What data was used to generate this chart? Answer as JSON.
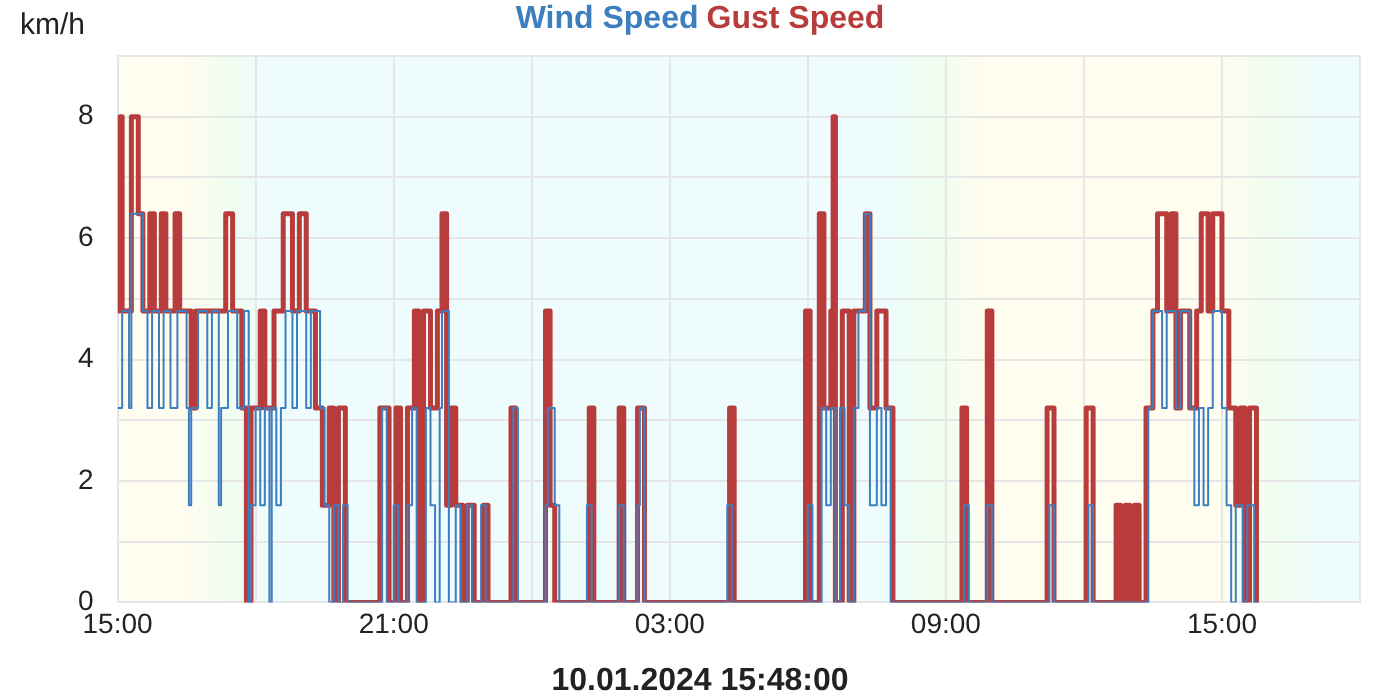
{
  "chart_data": {
    "type": "step",
    "xlabel": "10.01.2024 15:48:00",
    "ylabel": "km/h",
    "legend": "top",
    "grid": true,
    "marker": "none",
    "line_style": "solid",
    "xlim": [
      "2024-01-09T15:00",
      "2024-01-10T18:00"
    ],
    "xticks": [
      {
        "value": "2024-01-09T15:00",
        "label": "15:00"
      },
      {
        "value": "2024-01-09T18:00",
        "label": null
      },
      {
        "value": "2024-01-09T21:00",
        "label": "21:00"
      },
      {
        "value": "2024-01-10T00:00",
        "label": null
      },
      {
        "value": "2024-01-10T03:00",
        "label": "03:00"
      },
      {
        "value": "2024-01-10T06:00",
        "label": null
      },
      {
        "value": "2024-01-10T09:00",
        "label": "09:00"
      },
      {
        "value": "2024-01-10T12:00",
        "label": null
      },
      {
        "value": "2024-01-10T15:00",
        "label": "15:00"
      },
      {
        "value": "2024-01-10T18:00",
        "label": null
      }
    ],
    "ylim": [
      0,
      9
    ],
    "yticks": [
      0,
      {
        "value": 1,
        "label": null
      },
      2,
      {
        "value": 3,
        "label": null
      },
      4,
      {
        "value": 5,
        "label": null
      },
      6,
      {
        "value": 7,
        "label": null
      },
      8,
      {
        "value": 9,
        "label": null
      }
    ],
    "series": [
      {
        "name": "Wind Speed",
        "color": "#3d7ebf",
        "x": [
          "2024-01-09T15:00",
          "2024-01-09T15:06",
          "2024-01-09T15:15",
          "2024-01-09T15:18",
          "2024-01-09T15:33",
          "2024-01-09T15:39",
          "2024-01-09T15:45",
          "2024-01-09T15:54",
          "2024-01-09T16:00",
          "2024-01-09T16:09",
          "2024-01-09T16:18",
          "2024-01-09T16:30",
          "2024-01-09T16:33",
          "2024-01-09T16:36",
          "2024-01-09T16:45",
          "2024-01-09T16:57",
          "2024-01-09T17:03",
          "2024-01-09T17:12",
          "2024-01-09T17:15",
          "2024-01-09T17:24",
          "2024-01-09T17:36",
          "2024-01-09T17:45",
          "2024-01-09T17:51",
          "2024-01-09T17:54",
          "2024-01-09T18:00",
          "2024-01-09T18:06",
          "2024-01-09T18:12",
          "2024-01-09T18:18",
          "2024-01-09T18:21",
          "2024-01-09T18:27",
          "2024-01-09T18:33",
          "2024-01-09T18:39",
          "2024-01-09T18:48",
          "2024-01-09T18:54",
          "2024-01-09T19:06",
          "2024-01-09T19:12",
          "2024-01-09T19:24",
          "2024-01-09T19:30",
          "2024-01-09T19:36",
          "2024-01-09T19:42",
          "2024-01-09T19:48",
          "2024-01-09T19:54",
          "2024-01-09T20:00",
          "2024-01-09T20:45",
          "2024-01-09T20:51",
          "2024-01-09T21:00",
          "2024-01-09T21:06",
          "2024-01-09T21:18",
          "2024-01-09T21:24",
          "2024-01-09T21:30",
          "2024-01-09T21:42",
          "2024-01-09T21:48",
          "2024-01-09T21:54",
          "2024-01-09T22:00",
          "2024-01-09T22:03",
          "2024-01-09T22:12",
          "2024-01-09T22:21",
          "2024-01-09T22:27",
          "2024-01-09T22:36",
          "2024-01-09T22:42",
          "2024-01-09T22:54",
          "2024-01-09T23:00",
          "2024-01-09T23:36",
          "2024-01-09T23:42",
          "2024-01-10T00:18",
          "2024-01-10T00:21",
          "2024-01-10T00:30",
          "2024-01-10T00:36",
          "2024-01-10T01:12",
          "2024-01-10T01:18",
          "2024-01-10T01:54",
          "2024-01-10T02:00",
          "2024-01-10T02:18",
          "2024-01-10T02:21",
          "2024-01-10T02:27",
          "2024-01-10T04:15",
          "2024-01-10T04:21",
          "2024-01-10T06:00",
          "2024-01-10T06:06",
          "2024-01-10T06:18",
          "2024-01-10T06:24",
          "2024-01-10T06:30",
          "2024-01-10T06:36",
          "2024-01-10T06:42",
          "2024-01-10T06:48",
          "2024-01-10T06:54",
          "2024-01-10T07:00",
          "2024-01-10T07:06",
          "2024-01-10T07:15",
          "2024-01-10T07:21",
          "2024-01-10T07:30",
          "2024-01-10T07:36",
          "2024-01-10T07:42",
          "2024-01-10T07:48",
          "2024-01-10T09:24",
          "2024-01-10T09:30",
          "2024-01-10T09:54",
          "2024-01-10T10:00",
          "2024-01-10T11:15",
          "2024-01-10T11:21",
          "2024-01-10T12:06",
          "2024-01-10T12:12",
          "2024-01-10T13:24",
          "2024-01-10T13:30",
          "2024-01-10T13:42",
          "2024-01-10T13:48",
          "2024-01-10T14:00",
          "2024-01-10T14:06",
          "2024-01-10T14:18",
          "2024-01-10T14:24",
          "2024-01-10T14:30",
          "2024-01-10T14:36",
          "2024-01-10T14:42",
          "2024-01-10T14:48",
          "2024-01-10T15:00",
          "2024-01-10T15:06",
          "2024-01-10T15:12",
          "2024-01-10T15:18",
          "2024-01-10T15:27",
          "2024-01-10T15:33",
          "2024-01-10T15:42",
          "2024-01-10T15:48"
        ],
        "values": [
          3.2,
          4.8,
          3.2,
          6.4,
          4.8,
          3.2,
          4.8,
          3.2,
          4.8,
          3.2,
          4.8,
          3.2,
          1.6,
          3.2,
          4.8,
          3.2,
          4.8,
          1.6,
          3.2,
          4.8,
          3.2,
          4.8,
          0,
          1.6,
          3.2,
          1.6,
          3.2,
          0,
          3.2,
          1.6,
          3.2,
          4.8,
          3.2,
          4.8,
          3.2,
          4.8,
          3.2,
          1.6,
          0,
          1.6,
          0,
          1.6,
          0,
          3.2,
          0,
          1.6,
          0,
          1.6,
          3.2,
          0,
          3.2,
          1.6,
          0,
          3.2,
          4.8,
          0,
          1.6,
          0,
          1.6,
          0,
          1.6,
          0,
          3.2,
          0,
          1.6,
          3.2,
          1.6,
          0,
          1.6,
          0,
          1.6,
          0,
          1.6,
          3.2,
          0,
          1.6,
          0,
          1.6,
          0,
          3.2,
          1.6,
          3.2,
          0,
          3.2,
          1.6,
          0,
          3.2,
          4.8,
          6.4,
          1.6,
          3.2,
          1.6,
          3.2,
          0,
          1.6,
          0,
          1.6,
          0,
          1.6,
          0,
          1.6,
          0,
          3.2,
          4.8,
          3.2,
          4.8,
          3.2,
          4.8,
          3.2,
          1.6,
          3.2,
          1.6,
          3.2,
          4.8,
          3.2,
          1.6,
          0,
          1.6,
          0,
          1.6,
          0,
          0
        ]
      },
      {
        "name": "Gust Speed",
        "color": "#b83c3c",
        "x": [
          "2024-01-09T15:00",
          "2024-01-09T15:03",
          "2024-01-09T15:06",
          "2024-01-09T15:18",
          "2024-01-09T15:27",
          "2024-01-09T15:33",
          "2024-01-09T15:42",
          "2024-01-09T15:48",
          "2024-01-09T15:57",
          "2024-01-09T16:03",
          "2024-01-09T16:15",
          "2024-01-09T16:21",
          "2024-01-09T16:36",
          "2024-01-09T16:42",
          "2024-01-09T17:21",
          "2024-01-09T17:30",
          "2024-01-09T17:42",
          "2024-01-09T17:48",
          "2024-01-09T17:54",
          "2024-01-09T18:06",
          "2024-01-09T18:12",
          "2024-01-09T18:24",
          "2024-01-09T18:36",
          "2024-01-09T18:48",
          "2024-01-09T18:57",
          "2024-01-09T19:06",
          "2024-01-09T19:18",
          "2024-01-09T19:27",
          "2024-01-09T19:36",
          "2024-01-09T19:42",
          "2024-01-09T19:48",
          "2024-01-09T19:57",
          "2024-01-09T20:42",
          "2024-01-09T20:54",
          "2024-01-09T21:03",
          "2024-01-09T21:09",
          "2024-01-09T21:18",
          "2024-01-09T21:27",
          "2024-01-09T21:33",
          "2024-01-09T21:39",
          "2024-01-09T21:48",
          "2024-01-09T21:57",
          "2024-01-09T22:03",
          "2024-01-09T22:09",
          "2024-01-09T22:15",
          "2024-01-09T22:21",
          "2024-01-09T22:30",
          "2024-01-09T22:36",
          "2024-01-09T22:45",
          "2024-01-09T22:57",
          "2024-01-09T23:03",
          "2024-01-09T23:33",
          "2024-01-09T23:39",
          "2024-01-10T00:18",
          "2024-01-10T00:24",
          "2024-01-10T00:30",
          "2024-01-10T01:15",
          "2024-01-10T01:21",
          "2024-01-10T01:54",
          "2024-01-10T02:00",
          "2024-01-10T02:18",
          "2024-01-10T02:27",
          "2024-01-10T04:18",
          "2024-01-10T04:24",
          "2024-01-10T05:57",
          "2024-01-10T06:03",
          "2024-01-10T06:15",
          "2024-01-10T06:21",
          "2024-01-10T06:30",
          "2024-01-10T06:33",
          "2024-01-10T06:36",
          "2024-01-10T06:45",
          "2024-01-10T06:54",
          "2024-01-10T07:00",
          "2024-01-10T07:15",
          "2024-01-10T07:21",
          "2024-01-10T07:30",
          "2024-01-10T07:42",
          "2024-01-10T07:51",
          "2024-01-10T09:21",
          "2024-01-10T09:27",
          "2024-01-10T09:54",
          "2024-01-10T10:00",
          "2024-01-10T11:12",
          "2024-01-10T11:21",
          "2024-01-10T12:03",
          "2024-01-10T12:12",
          "2024-01-10T12:42",
          "2024-01-10T12:48",
          "2024-01-10T12:54",
          "2024-01-10T13:00",
          "2024-01-10T13:06",
          "2024-01-10T13:12",
          "2024-01-10T13:21",
          "2024-01-10T13:30",
          "2024-01-10T13:36",
          "2024-01-10T13:48",
          "2024-01-10T13:54",
          "2024-01-10T14:00",
          "2024-01-10T14:06",
          "2024-01-10T14:18",
          "2024-01-10T14:27",
          "2024-01-10T14:33",
          "2024-01-10T14:42",
          "2024-01-10T14:48",
          "2024-01-10T15:00",
          "2024-01-10T15:09",
          "2024-01-10T15:18",
          "2024-01-10T15:24",
          "2024-01-10T15:30",
          "2024-01-10T15:36",
          "2024-01-10T15:45",
          "2024-01-10T15:48"
        ],
        "values": [
          4.8,
          8.0,
          4.8,
          8.0,
          6.4,
          4.8,
          6.4,
          4.8,
          6.4,
          4.8,
          6.4,
          4.8,
          3.2,
          4.8,
          6.4,
          4.8,
          3.2,
          0,
          3.2,
          4.8,
          3.2,
          4.8,
          6.4,
          4.8,
          6.4,
          4.8,
          3.2,
          1.6,
          3.2,
          0,
          3.2,
          0,
          3.2,
          0,
          3.2,
          0,
          3.2,
          4.8,
          0,
          4.8,
          3.2,
          4.8,
          6.4,
          1.6,
          3.2,
          1.6,
          0,
          1.6,
          0,
          1.6,
          0,
          3.2,
          0,
          4.8,
          1.6,
          0,
          3.2,
          0,
          3.2,
          0,
          3.2,
          0,
          3.2,
          0,
          4.8,
          0,
          6.4,
          3.2,
          4.8,
          8.0,
          0,
          4.8,
          0,
          4.8,
          6.4,
          3.2,
          4.8,
          3.2,
          0,
          3.2,
          0,
          4.8,
          0,
          3.2,
          0,
          3.2,
          0,
          1.6,
          0,
          1.6,
          0,
          1.6,
          0,
          3.2,
          4.8,
          6.4,
          4.8,
          6.4,
          3.2,
          4.8,
          3.2,
          4.8,
          6.4,
          4.8,
          6.4,
          4.8,
          3.2,
          1.6,
          3.2,
          0,
          3.2,
          0,
          0
        ]
      }
    ]
  }
}
